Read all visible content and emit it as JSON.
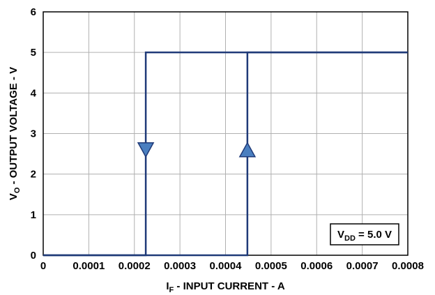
{
  "chart_data": {
    "type": "line",
    "xlabel_main": "I",
    "xlabel_sub": "F",
    "xlabel_rest": " - INPUT CURRENT - A",
    "ylabel_main": "V",
    "ylabel_sub": "O",
    "ylabel_rest": " - OUTPUT VOLTAGE - V",
    "xlim": [
      0,
      0.0008
    ],
    "ylim": [
      0,
      6
    ],
    "x_ticks": [
      0,
      0.0001,
      0.0002,
      0.0003,
      0.0004,
      0.0005,
      0.0006,
      0.0007,
      0.0008
    ],
    "x_tick_labels": [
      "0",
      "0.0001",
      "0.0002",
      "0.0003",
      "0.0004",
      "0.0005",
      "0.0006",
      "0.0007",
      "0.0008"
    ],
    "y_ticks": [
      0,
      1,
      2,
      3,
      4,
      5,
      6
    ],
    "y_tick_labels": [
      "0",
      "1",
      "2",
      "3",
      "4",
      "5",
      "6"
    ],
    "grid": true,
    "series": [
      {
        "direction": "decreasing",
        "x": [
          0.0008,
          0.000225,
          0.000225,
          0
        ],
        "y": [
          5,
          5,
          0,
          0
        ],
        "arrow": {
          "x": 0.000225,
          "y": 2.6,
          "dir": "down"
        }
      },
      {
        "direction": "increasing",
        "x": [
          0,
          0.000448,
          0.000448,
          0.0008
        ],
        "y": [
          0,
          0,
          5,
          5
        ],
        "arrow": {
          "x": 0.000448,
          "y": 2.6,
          "dir": "up"
        }
      }
    ],
    "annotation": {
      "main": "V",
      "sub": "DD",
      "rest": " = 5.0 V",
      "position": "bottom-right"
    },
    "colors": {
      "line": "#1f3a78",
      "arrow_fill": "#4a7fc0",
      "grid": "#b0b0b0"
    }
  }
}
